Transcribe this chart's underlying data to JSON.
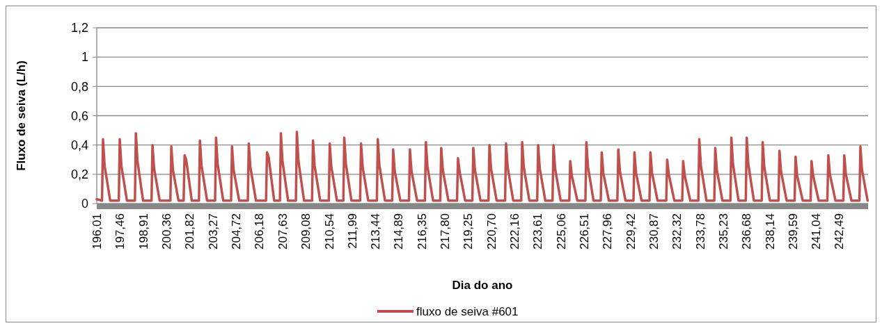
{
  "chart_data": {
    "type": "line",
    "xlabel": "Dia do ano",
    "ylabel": "Fluxo de seiva (L/h)",
    "xlim": [
      196.0,
      244.3
    ],
    "ylim": [
      0,
      1.2
    ],
    "xticks": [
      {
        "value": 196.01,
        "label": "196,01"
      },
      {
        "value": 197.46,
        "label": "197,46"
      },
      {
        "value": 198.91,
        "label": "198,91"
      },
      {
        "value": 200.36,
        "label": "200,36"
      },
      {
        "value": 201.82,
        "label": "201,82"
      },
      {
        "value": 203.27,
        "label": "203,27"
      },
      {
        "value": 204.72,
        "label": "204,72"
      },
      {
        "value": 206.18,
        "label": "206,18"
      },
      {
        "value": 207.63,
        "label": "207,63"
      },
      {
        "value": 209.08,
        "label": "209,08"
      },
      {
        "value": 210.54,
        "label": "210,54"
      },
      {
        "value": 211.99,
        "label": "211,99"
      },
      {
        "value": 213.44,
        "label": "213,44"
      },
      {
        "value": 214.89,
        "label": "214,89"
      },
      {
        "value": 216.35,
        "label": "216,35"
      },
      {
        "value": 217.8,
        "label": "217,80"
      },
      {
        "value": 219.25,
        "label": "219,25"
      },
      {
        "value": 220.7,
        "label": "220,70"
      },
      {
        "value": 222.16,
        "label": "222,16"
      },
      {
        "value": 223.61,
        "label": "223,61"
      },
      {
        "value": 225.06,
        "label": "225,06"
      },
      {
        "value": 226.51,
        "label": "226,51"
      },
      {
        "value": 227.96,
        "label": "227,96"
      },
      {
        "value": 229.42,
        "label": "229,42"
      },
      {
        "value": 230.87,
        "label": "230,87"
      },
      {
        "value": 232.32,
        "label": "232,32"
      },
      {
        "value": 233.78,
        "label": "233,78"
      },
      {
        "value": 235.23,
        "label": "235,23"
      },
      {
        "value": 236.68,
        "label": "236,68"
      },
      {
        "value": 238.14,
        "label": "238,14"
      },
      {
        "value": 239.59,
        "label": "239,59"
      },
      {
        "value": 241.04,
        "label": "241,04"
      },
      {
        "value": 242.49,
        "label": "242,49"
      }
    ],
    "yticks": [
      0,
      {
        "value": 0.2,
        "label": "0,2"
      },
      {
        "value": 0.4,
        "label": "0,4"
      },
      {
        "value": 0.6,
        "label": "0,6"
      },
      {
        "value": 0.8,
        "label": "0,8"
      },
      1,
      {
        "value": 1.2,
        "label": "1,2"
      }
    ],
    "grid": "y",
    "legend": "bottom",
    "line_style": "solid",
    "marker": "none",
    "series": [
      {
        "name": "fluxo de seiva #601",
        "color": "#c0504d",
        "x": [
          196.0,
          196.33,
          196.39,
          196.49,
          196.84,
          197.38,
          197.44,
          197.54,
          197.89,
          198.39,
          198.45,
          198.55,
          198.9,
          199.43,
          199.49,
          199.59,
          199.94,
          200.61,
          200.67,
          200.77,
          201.12,
          201.44,
          201.5,
          201.6,
          201.95,
          202.4,
          202.46,
          202.56,
          202.91,
          203.41,
          203.47,
          203.57,
          203.92,
          204.41,
          204.47,
          204.57,
          204.92,
          205.46,
          205.52,
          205.62,
          205.97,
          206.6,
          206.66,
          206.76,
          207.11,
          207.47,
          207.53,
          207.63,
          207.98,
          208.47,
          208.53,
          208.63,
          208.98,
          209.48,
          209.54,
          209.64,
          209.99,
          210.53,
          210.59,
          210.69,
          211.04,
          211.44,
          211.5,
          211.6,
          211.95,
          212.49,
          212.55,
          212.65,
          213.0,
          213.54,
          213.6,
          213.7,
          214.05,
          214.5,
          214.56,
          214.66,
          215.01,
          215.55,
          215.61,
          215.71,
          216.06,
          216.55,
          216.61,
          216.71,
          217.06,
          217.51,
          217.57,
          217.67,
          218.02,
          218.56,
          218.62,
          218.72,
          219.07,
          219.52,
          219.58,
          219.68,
          220.03,
          220.53,
          220.59,
          220.69,
          221.04,
          221.57,
          221.63,
          221.73,
          222.08,
          222.58,
          222.64,
          222.74,
          223.09,
          223.58,
          223.64,
          223.74,
          224.09,
          224.54,
          224.6,
          224.7,
          225.05,
          225.59,
          225.65,
          225.75,
          226.1,
          226.6,
          226.66,
          226.76,
          227.11,
          227.56,
          227.62,
          227.72,
          228.07,
          228.6,
          228.66,
          228.76,
          229.11,
          229.61,
          229.67,
          229.77,
          230.12,
          230.61,
          230.67,
          230.77,
          231.12,
          231.66,
          231.72,
          231.82,
          232.17,
          232.66,
          232.72,
          232.82,
          233.17,
          233.67,
          233.73,
          233.83,
          234.18,
          234.67,
          234.73,
          234.83,
          235.18,
          235.68,
          235.74,
          235.84,
          236.19,
          236.64,
          236.7,
          236.8,
          237.15,
          237.64,
          237.7,
          237.8,
          238.15,
          238.69,
          238.75,
          238.85,
          239.2,
          239.7,
          239.76,
          239.86,
          240.21,
          240.7,
          240.76,
          240.86,
          241.21,
          241.75,
          241.81,
          241.91,
          242.26,
          242.75,
          242.81,
          242.91,
          243.26,
          243.76,
          243.82,
          243.92,
          244.27
        ],
        "values": [
          0.03,
          0.02,
          0.44,
          0.26,
          0.02,
          0.02,
          0.44,
          0.26,
          0.02,
          0.02,
          0.48,
          0.29,
          0.02,
          0.02,
          0.4,
          0.24,
          0.02,
          0.02,
          0.39,
          0.23,
          0.02,
          0.02,
          0.33,
          0.3,
          0.02,
          0.02,
          0.43,
          0.26,
          0.02,
          0.02,
          0.45,
          0.27,
          0.02,
          0.02,
          0.39,
          0.23,
          0.02,
          0.02,
          0.41,
          0.25,
          0.02,
          0.02,
          0.35,
          0.32,
          0.02,
          0.02,
          0.48,
          0.29,
          0.02,
          0.02,
          0.49,
          0.29,
          0.02,
          0.02,
          0.43,
          0.26,
          0.02,
          0.02,
          0.41,
          0.25,
          0.02,
          0.02,
          0.45,
          0.27,
          0.02,
          0.02,
          0.41,
          0.25,
          0.02,
          0.02,
          0.44,
          0.26,
          0.02,
          0.02,
          0.37,
          0.22,
          0.02,
          0.02,
          0.37,
          0.22,
          0.02,
          0.02,
          0.42,
          0.25,
          0.02,
          0.02,
          0.38,
          0.23,
          0.02,
          0.02,
          0.31,
          0.22,
          0.02,
          0.02,
          0.38,
          0.23,
          0.02,
          0.02,
          0.4,
          0.24,
          0.02,
          0.02,
          0.41,
          0.25,
          0.02,
          0.02,
          0.42,
          0.25,
          0.02,
          0.02,
          0.4,
          0.24,
          0.02,
          0.02,
          0.4,
          0.24,
          0.02,
          0.02,
          0.29,
          0.19,
          0.02,
          0.02,
          0.42,
          0.25,
          0.02,
          0.02,
          0.35,
          0.21,
          0.02,
          0.02,
          0.37,
          0.22,
          0.02,
          0.02,
          0.35,
          0.21,
          0.02,
          0.02,
          0.35,
          0.21,
          0.02,
          0.02,
          0.3,
          0.2,
          0.02,
          0.02,
          0.29,
          0.19,
          0.02,
          0.02,
          0.44,
          0.26,
          0.02,
          0.02,
          0.38,
          0.23,
          0.02,
          0.02,
          0.45,
          0.27,
          0.02,
          0.02,
          0.45,
          0.27,
          0.02,
          0.02,
          0.42,
          0.25,
          0.02,
          0.02,
          0.36,
          0.22,
          0.02,
          0.02,
          0.32,
          0.19,
          0.02,
          0.02,
          0.29,
          0.19,
          0.02,
          0.02,
          0.33,
          0.2,
          0.02,
          0.02,
          0.33,
          0.2,
          0.02,
          0.02,
          0.39,
          0.23,
          0.02
        ]
      }
    ]
  }
}
